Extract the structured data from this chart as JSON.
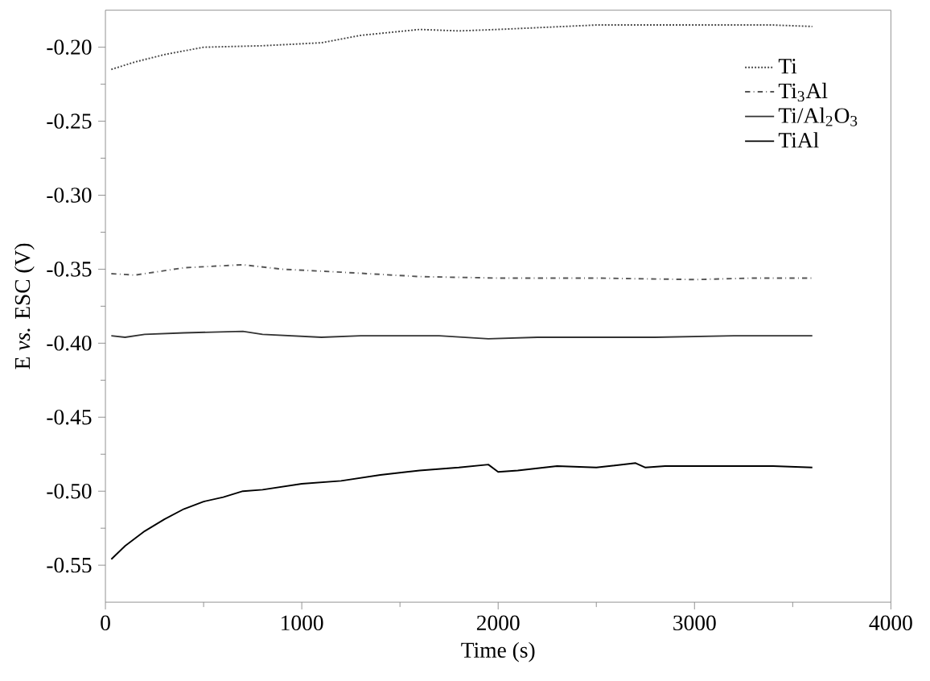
{
  "chart_data": {
    "type": "line",
    "xlabel": "Time (s)",
    "ylabel": "E *vs.* ESC (V)",
    "xlim": [
      0,
      4000
    ],
    "xticks": [
      0,
      1000,
      2000,
      3000,
      4000
    ],
    "ylim": [
      -0.575,
      -0.175
    ],
    "yticks": [
      {
        "value": -0.2,
        "label": "-0.20"
      },
      {
        "value": -0.25,
        "label": "-0.25"
      },
      {
        "value": -0.3,
        "label": "-0.30"
      },
      {
        "value": -0.35,
        "label": "-0.35"
      },
      {
        "value": -0.4,
        "label": "-0.40"
      },
      {
        "value": -0.45,
        "label": "-0.45"
      },
      {
        "value": -0.5,
        "label": "-0.50"
      },
      {
        "value": -0.55,
        "label": "-0.55"
      }
    ],
    "grid": false,
    "legend": "top right",
    "marker": "none",
    "series": [
      {
        "name": "Ti",
        "color": "#444444",
        "line_style": "dotted",
        "x": [
          30,
          150,
          300,
          500,
          800,
          1100,
          1300,
          1600,
          1800,
          2000,
          2500,
          3000,
          3400,
          3600
        ],
        "values": [
          -0.215,
          -0.21,
          -0.205,
          -0.2,
          -0.199,
          -0.197,
          -0.192,
          -0.188,
          -0.189,
          -0.188,
          -0.185,
          -0.185,
          -0.185,
          -0.186
        ]
      },
      {
        "name": "Ti$_{3}$Al",
        "color": "#555555",
        "line_style": "dashdot",
        "x": [
          30,
          150,
          400,
          700,
          900,
          1200,
          1600,
          2000,
          2500,
          3000,
          3300,
          3600
        ],
        "values": [
          -0.353,
          -0.354,
          -0.349,
          -0.347,
          -0.35,
          -0.352,
          -0.355,
          -0.356,
          -0.356,
          -0.357,
          -0.356,
          -0.356
        ]
      },
      {
        "name": "Ti/Al$_{2}$O$_{3}$",
        "color": "#333333",
        "line_style": "solid",
        "x": [
          30,
          100,
          200,
          400,
          700,
          800,
          1100,
          1300,
          1700,
          1950,
          2200,
          2500,
          2800,
          3200,
          3500,
          3600
        ],
        "values": [
          -0.395,
          -0.396,
          -0.394,
          -0.393,
          -0.392,
          -0.394,
          -0.396,
          -0.395,
          -0.395,
          -0.397,
          -0.396,
          -0.396,
          -0.396,
          -0.395,
          -0.395,
          -0.395
        ]
      },
      {
        "name": "TiAl",
        "color": "#000000",
        "line_style": "solid",
        "x": [
          30,
          100,
          200,
          300,
          400,
          500,
          600,
          700,
          800,
          1000,
          1200,
          1400,
          1600,
          1800,
          1950,
          2000,
          2100,
          2300,
          2500,
          2700,
          2750,
          2850,
          3000,
          3200,
          3400,
          3600
        ],
        "values": [
          -0.546,
          -0.537,
          -0.527,
          -0.519,
          -0.512,
          -0.507,
          -0.504,
          -0.5,
          -0.499,
          -0.495,
          -0.493,
          -0.489,
          -0.486,
          -0.484,
          -0.482,
          -0.487,
          -0.486,
          -0.483,
          -0.484,
          -0.481,
          -0.484,
          -0.483,
          -0.483,
          -0.483,
          -0.483,
          -0.484
        ]
      }
    ]
  }
}
